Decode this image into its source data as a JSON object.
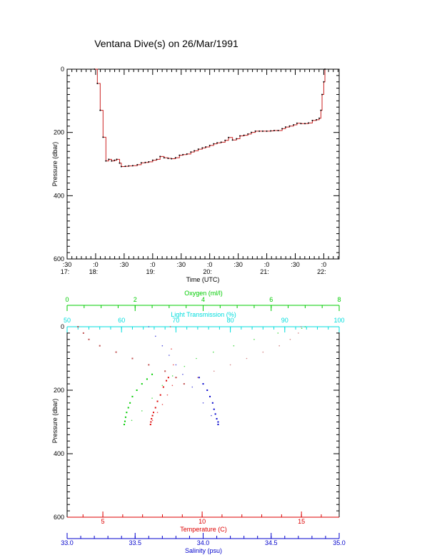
{
  "title": "Ventana Dive(s) on 26/Mar/1991",
  "colors": {
    "axis": "#000000",
    "pressure_trace": "#cc2222",
    "temperature": "#dd0000",
    "salinity": "#0000cc",
    "oxygen": "#00cc00",
    "transmission": "#00dddd",
    "transmission_dots": "#c05050"
  },
  "chart_data": [
    {
      "type": "line",
      "title": "Ventana Dive(s) on 26/Mar/1991",
      "xlabel": "Time (UTC)",
      "ylabel": "Pressure (dbar)",
      "x_unit": "decimal hours UTC",
      "xlim": [
        17.5,
        22.27
      ],
      "ylim": [
        600,
        0
      ],
      "y_inverted": true,
      "y_ticks": [
        "0",
        "200",
        "400",
        "600"
      ],
      "x_tick_labels": [
        {
          "x": 17.5,
          "top": ":30",
          "bottom": "17:"
        },
        {
          "x": 18.0,
          "top": ":0",
          "bottom": "18:"
        },
        {
          "x": 18.5,
          "top": ":30",
          "bottom": ""
        },
        {
          "x": 19.0,
          "top": ":0",
          "bottom": "19:"
        },
        {
          "x": 19.5,
          "top": ":30",
          "bottom": ""
        },
        {
          "x": 20.0,
          "top": ":0",
          "bottom": "20:"
        },
        {
          "x": 20.5,
          "top": ":30",
          "bottom": ""
        },
        {
          "x": 21.0,
          "top": ":0",
          "bottom": "21:"
        },
        {
          "x": 21.5,
          "top": ":30",
          "bottom": ""
        },
        {
          "x": 22.0,
          "top": ":0",
          "bottom": "22:"
        }
      ],
      "series": [
        {
          "x": [
            17.98,
            18.03,
            18.08,
            18.13,
            18.18,
            18.23,
            18.28,
            18.33,
            18.37,
            18.42,
            18.45,
            18.52,
            18.58,
            18.65,
            18.73,
            18.8,
            18.87,
            18.93,
            19.0,
            19.07,
            19.13,
            19.2,
            19.27,
            19.33,
            19.4,
            19.47,
            19.53,
            19.6,
            19.67,
            19.73,
            19.8,
            19.87,
            19.93,
            20.0,
            20.07,
            20.13,
            20.2,
            20.27,
            20.33,
            20.4,
            20.47,
            20.53,
            20.6,
            20.67,
            20.73,
            20.8,
            20.87,
            20.93,
            21.0,
            21.07,
            21.13,
            21.2,
            21.27,
            21.33,
            21.4,
            21.47,
            21.53,
            21.6,
            21.67,
            21.73,
            21.8,
            21.87,
            21.92,
            21.95,
            21.97,
            22.0,
            22.02
          ],
          "y": [
            0,
            45,
            130,
            215,
            290,
            285,
            290,
            288,
            285,
            297,
            308,
            307,
            306,
            305,
            302,
            296,
            295,
            293,
            288,
            285,
            276,
            280,
            282,
            283,
            280,
            272,
            270,
            268,
            262,
            258,
            253,
            249,
            246,
            241,
            236,
            233,
            231,
            225,
            216,
            224,
            220,
            211,
            209,
            205,
            200,
            196,
            196,
            196,
            196,
            195,
            194,
            194,
            188,
            183,
            180,
            176,
            171,
            172,
            172,
            170,
            162,
            160,
            155,
            130,
            80,
            40,
            0
          ]
        }
      ]
    },
    {
      "type": "scatter",
      "ylabel": "Pressure (dbar)",
      "ylim": [
        600,
        0
      ],
      "y_inverted": true,
      "y_ticks": [
        "0",
        "200",
        "400",
        "600"
      ],
      "axes": {
        "oxygen": {
          "label": "Oxygen (ml/l)",
          "xlim": [
            0,
            8
          ],
          "ticks": [
            "0",
            "2",
            "4",
            "6",
            "8"
          ],
          "position": "top"
        },
        "transmission": {
          "label": "Light Transmission (%)",
          "xlim": [
            50,
            100
          ],
          "ticks": [
            "50",
            "60",
            "70",
            "80",
            "90",
            "100"
          ],
          "position": "top"
        },
        "temperature": {
          "label": "Temperature (C)",
          "xlim": [
            3.2,
            16.9
          ],
          "ticks": [
            "5",
            "10",
            "15"
          ],
          "position": "bottom"
        },
        "salinity": {
          "label": "Salinity (psu)",
          "xlim": [
            33.0,
            35.0
          ],
          "ticks": [
            "33.0",
            "33.5",
            "34.0",
            "34.5",
            "35.0"
          ],
          "position": "bottom"
        }
      },
      "series": [
        {
          "axis": "temperature",
          "descent_x": [
            8.3,
            8.2,
            8.05,
            7.9,
            7.75,
            7.65,
            7.55,
            7.5,
            7.45,
            7.42,
            7.4
          ],
          "descent_y": [
            160,
            170,
            190,
            215,
            235,
            255,
            270,
            280,
            290,
            300,
            308
          ],
          "ascent_x": [
            7.4,
            7.5,
            7.75,
            8.0,
            8.25,
            8.5,
            8.7,
            8.55,
            8.45,
            8.4
          ],
          "ascent_y": [
            308,
            295,
            270,
            245,
            215,
            185,
            160,
            120,
            70,
            0
          ]
        },
        {
          "axis": "salinity",
          "descent_x": [
            33.97,
            34.0,
            34.03,
            34.05,
            34.07,
            34.08,
            34.09,
            34.1,
            34.11,
            34.11
          ],
          "descent_y": [
            160,
            180,
            200,
            220,
            240,
            260,
            275,
            290,
            300,
            308
          ],
          "ascent_x": [
            34.11,
            34.06,
            34.0,
            33.92,
            33.85,
            33.8,
            33.75,
            33.7,
            33.65,
            33.6
          ],
          "ascent_y": [
            308,
            280,
            240,
            190,
            150,
            120,
            90,
            60,
            30,
            0
          ]
        },
        {
          "axis": "oxygen",
          "descent_x": [
            2.5,
            2.35,
            2.2,
            2.05,
            1.92,
            1.85,
            1.8,
            1.75,
            1.72,
            1.7,
            1.68
          ],
          "descent_y": [
            150,
            165,
            180,
            200,
            220,
            240,
            255,
            270,
            285,
            298,
            308
          ],
          "ascent_x": [
            1.68,
            1.9,
            2.2,
            2.5,
            2.8,
            3.1,
            3.45,
            3.8,
            4.3,
            4.9,
            5.5,
            6.2,
            6.9,
            7.0
          ],
          "ascent_y": [
            308,
            295,
            265,
            225,
            185,
            155,
            125,
            100,
            80,
            60,
            40,
            20,
            5,
            0
          ]
        },
        {
          "axis": "transmission",
          "descent_x": [
            52.0,
            53.0,
            54.0,
            56.0,
            59.0,
            62.0,
            65.0,
            68.0,
            70.0,
            71.5
          ],
          "descent_y": [
            0,
            20,
            40,
            60,
            80,
            100,
            120,
            140,
            160,
            180
          ],
          "ascent_x": [
            71.5,
            74.0,
            77.0,
            80.0,
            83.0,
            86.0,
            89.0,
            91.0,
            92.5,
            93.0
          ],
          "ascent_y": [
            180,
            160,
            140,
            120,
            100,
            80,
            60,
            40,
            20,
            0
          ]
        }
      ]
    }
  ]
}
